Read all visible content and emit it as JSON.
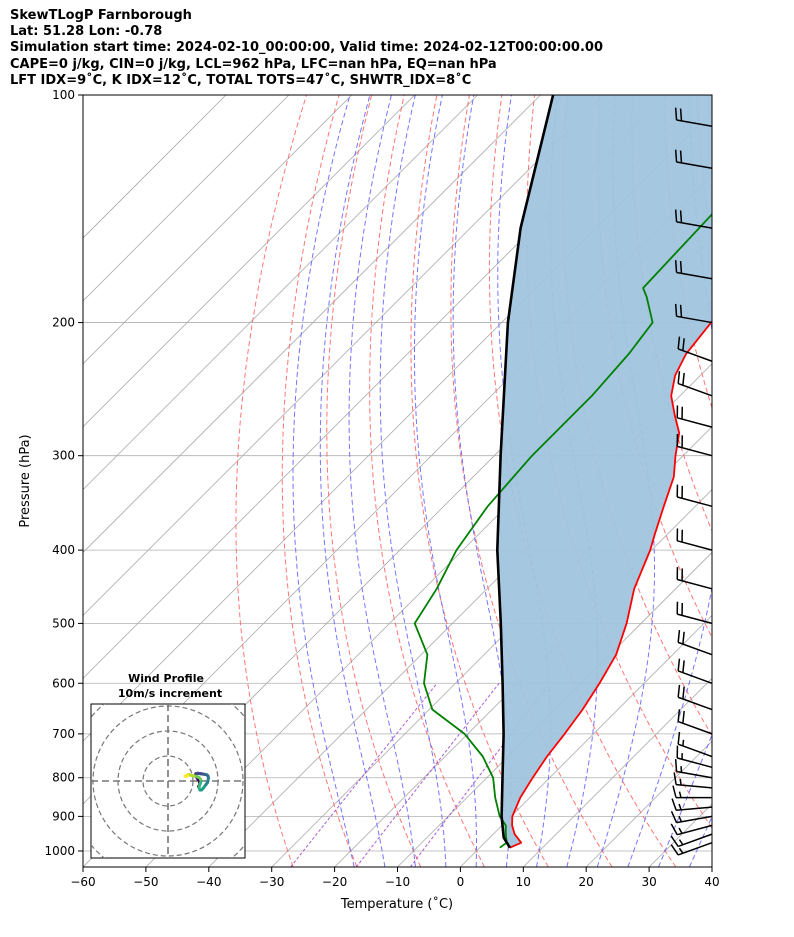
{
  "header": {
    "line1": "SkewTLogP Farnborough",
    "line2": "Lat: 51.28   Lon: -0.78",
    "line3": "Simulation start time: 2024-02-10_00:00:00, Valid time: 2024-02-12T00:00:00.00",
    "line4": "CAPE=0 j/kg, CIN=0 j/kg, LCL=962 hPa, LFC=nan hPa, EQ=nan hPa",
    "line5": "LFT IDX=9˚C, K IDX=12˚C, TOTAL TOTS=47˚C, SHWTR_IDX=8˚C"
  },
  "colors": {
    "temperature": "#ff0000",
    "dewpoint": "#008000",
    "parcel": "#000000",
    "cape_fill": "#a0c4de",
    "dry_adiabat": "#ff6666",
    "moist_adiabat": "#6666ff",
    "mixing_ratio": "#9933cc",
    "isotherm": "#aaaaaa"
  },
  "chart_data": {
    "type": "skewt",
    "title": "SkewTLogP Farnborough",
    "xlabel": "Temperature (˚C)",
    "ylabel": "Pressure (hPa)",
    "xlim": [
      -60,
      40
    ],
    "ylim": [
      1050,
      100
    ],
    "x_ticks": [
      "−60",
      "−50",
      "−40",
      "−30",
      "−20",
      "−10",
      "0",
      "10",
      "20",
      "30",
      "40"
    ],
    "y_ticks": [
      "100",
      "200",
      "300",
      "400",
      "500",
      "600",
      "700",
      "800",
      "900",
      "1000"
    ],
    "y_scale": "log",
    "grid": true,
    "temperature": {
      "pressure": [
        990,
        975,
        950,
        925,
        900,
        850,
        800,
        750,
        700,
        650,
        600,
        550,
        500,
        450,
        400,
        380,
        350,
        320,
        300,
        280,
        265,
        250,
        235,
        220,
        200,
        180,
        160,
        140,
        125,
        115,
        108,
        100
      ],
      "value": [
        4.8,
        5.8,
        3.4,
        1.6,
        0.2,
        -1.5,
        -2.7,
        -3.8,
        -4.6,
        -5.6,
        -7.1,
        -9.0,
        -12.3,
        -16.6,
        -20.2,
        -22.1,
        -25.0,
        -28.1,
        -31.2,
        -34.2,
        -37.8,
        -41.4,
        -44.0,
        -45.7,
        -46.7,
        -46.2,
        -44.7,
        -45.8,
        -48.9,
        -51.6,
        -53.8,
        -55.3
      ]
    },
    "dewpoint": {
      "pressure": [
        990,
        975,
        950,
        925,
        900,
        850,
        800,
        750,
        700,
        650,
        600,
        550,
        500,
        450,
        400,
        350,
        300,
        250,
        220,
        200,
        185,
        180,
        100
      ],
      "value": [
        3.2,
        3.5,
        2.0,
        0.6,
        -1.8,
        -5.5,
        -9.0,
        -14.0,
        -20.5,
        -29.5,
        -35.0,
        -39.0,
        -46.0,
        -48.0,
        -51.0,
        -53.0,
        -54.0,
        -54.0,
        -54.8,
        -56.0,
        -61.0,
        -63.0,
        -65.0
      ]
    },
    "parcel": {
      "pressure": [
        990,
        960,
        900,
        800,
        700,
        600,
        500,
        400,
        300,
        200,
        150,
        100
      ],
      "value": [
        4.8,
        2.2,
        -1.5,
        -7.5,
        -14.3,
        -22.5,
        -32.3,
        -44.5,
        -59.0,
        -79.0,
        -92.0,
        -108.0
      ]
    },
    "cape_cin": {
      "cape_jkg": 0,
      "cin_jkg": 0
    },
    "wind_barbs": {
      "pressure": [
        975,
        950,
        925,
        900,
        875,
        850,
        825,
        800,
        775,
        750,
        700,
        650,
        600,
        550,
        500,
        450,
        400,
        350,
        300,
        275,
        250,
        225,
        200,
        175,
        150,
        125,
        110
      ],
      "speed_kt": [
        15,
        15,
        15,
        15,
        15,
        15,
        15,
        15,
        15,
        15,
        20,
        20,
        20,
        20,
        20,
        20,
        20,
        20,
        20,
        20,
        20,
        20,
        20,
        20,
        20,
        20,
        20
      ],
      "direction_deg": [
        250,
        250,
        255,
        260,
        265,
        270,
        275,
        280,
        285,
        290,
        290,
        290,
        290,
        290,
        285,
        285,
        285,
        285,
        285,
        285,
        290,
        290,
        280,
        280,
        280,
        280,
        280
      ]
    },
    "hodograph": {
      "title_line1": "Wind Profile",
      "title_line2": "10m/s increment",
      "ring_increment_ms": 10,
      "u": [
        2.2,
        2.8,
        2.5,
        2.0,
        1.5,
        1.2,
        1.0,
        1.2,
        1.8,
        2.4,
        3.2,
        3.8,
        4.4,
        5.0,
        5.6,
        6.0,
        6.2,
        6.0,
        5.8,
        5.2,
        4.6,
        4.0,
        3.4,
        2.8,
        2.4,
        2.6,
        3.0,
        3.2,
        3.0,
        2.4,
        1.6,
        0.8,
        0.2,
        -0.5,
        -1.2,
        -1.8,
        -2.2,
        -2.4,
        -2.6,
        -2.8,
        -3.2
      ],
      "v": [
        -2.2,
        -1.2,
        -0.2,
        0.6,
        1.4,
        2.0,
        2.6,
        2.9,
        3.1,
        3.0,
        2.9,
        2.8,
        2.7,
        2.6,
        2.4,
        2.0,
        1.2,
        0.2,
        -0.6,
        -1.4,
        -2.2,
        -3.0,
        -3.6,
        -3.6,
        -2.8,
        -1.8,
        -0.8,
        0.0,
        0.8,
        1.4,
        1.8,
        2.0,
        2.0,
        2.2,
        2.4,
        2.6,
        2.4,
        2.0,
        1.8,
        1.9,
        2.0
      ]
    }
  }
}
